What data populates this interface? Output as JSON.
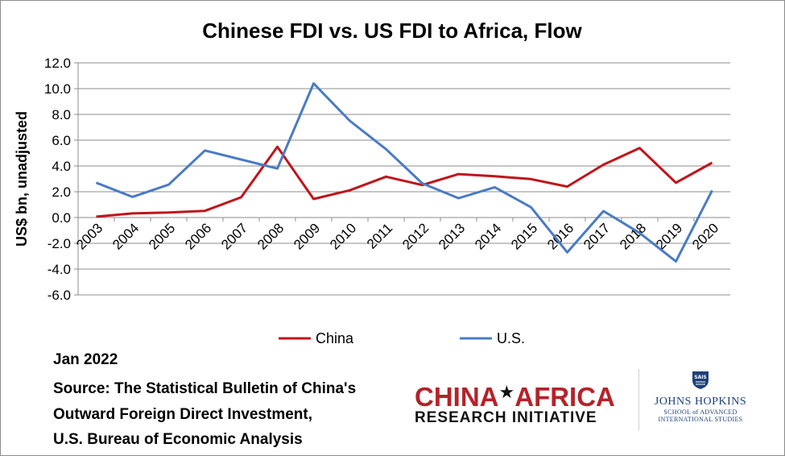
{
  "chart_data": {
    "type": "line",
    "title": "Chinese FDI vs. US FDI to Africa, Flow",
    "xlabel": "",
    "ylabel": "US$ bn, unadjusted",
    "ylim": [
      -6.0,
      12.0
    ],
    "yticks": [
      "12.0",
      "10.0",
      "8.0",
      "6.0",
      "4.0",
      "2.0",
      "0.0",
      "-2.0",
      "-4.0",
      "-6.0"
    ],
    "categories": [
      "2003",
      "2004",
      "2005",
      "2006",
      "2007",
      "2008",
      "2009",
      "2010",
      "2011",
      "2012",
      "2013",
      "2014",
      "2015",
      "2016",
      "2017",
      "2018",
      "2019",
      "2020"
    ],
    "series": [
      {
        "name": "China",
        "color": "#c0141b",
        "values": [
          0.07,
          0.32,
          0.39,
          0.52,
          1.57,
          5.49,
          1.44,
          2.11,
          3.17,
          2.52,
          3.37,
          3.2,
          2.98,
          2.4,
          4.1,
          5.39,
          2.7,
          4.25
        ]
      },
      {
        "name": "U.S.",
        "color": "#4a7bc4",
        "values": [
          2.7,
          1.6,
          2.55,
          5.2,
          4.5,
          3.8,
          10.4,
          7.5,
          5.3,
          2.65,
          1.5,
          2.35,
          0.8,
          -2.7,
          0.5,
          -1.2,
          -3.4,
          2.1
        ]
      }
    ],
    "legend": "bottom"
  },
  "notes": {
    "date": "Jan 2022",
    "source_line1": "Source: The Statistical Bulletin of China's",
    "source_line2": "Outward Foreign Direct Investment,",
    "source_line3": "U.S. Bureau of Economic Analysis"
  },
  "logos": {
    "cari_top_left": "CHINA",
    "cari_star": "★",
    "cari_top_right": "AFRICA",
    "cari_bottom": "RESEARCH INITIATIVE",
    "sais_badge": "SAIS",
    "jhu_name": "JOHNS HOPKINS",
    "jhu_sub1": "SCHOOL of ADVANCED",
    "jhu_sub2": "INTERNATIONAL STUDIES"
  }
}
